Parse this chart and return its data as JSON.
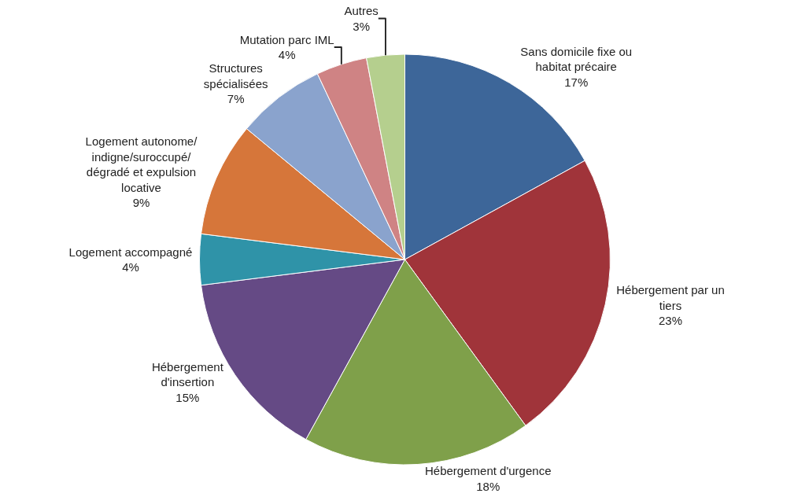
{
  "chart_data": {
    "type": "pie",
    "categories": [
      "Sans domicile fixe ou habitat précaire",
      "Hébergement par un tiers",
      "Hébergement d'urgence",
      "Hébergement d'insertion",
      "Logement accompagné",
      "Logement autonome/indigne/suroccupé/dégradé et expulsion locative",
      "Structures spécialisées",
      "Mutation parc IML",
      "Autres"
    ],
    "values": [
      17,
      23,
      18,
      15,
      4,
      9,
      7,
      4,
      3
    ],
    "value_labels": [
      "17%",
      "23%",
      "18%",
      "15%",
      "4%",
      "9%",
      "7%",
      "4%",
      "3%"
    ],
    "colors": [
      "#3d6699",
      "#a0343a",
      "#7fa04a",
      "#654a85",
      "#2f93a8",
      "#d6763a",
      "#8aa3cd",
      "#cf8384",
      "#b5cf8e"
    ],
    "legend": false
  }
}
